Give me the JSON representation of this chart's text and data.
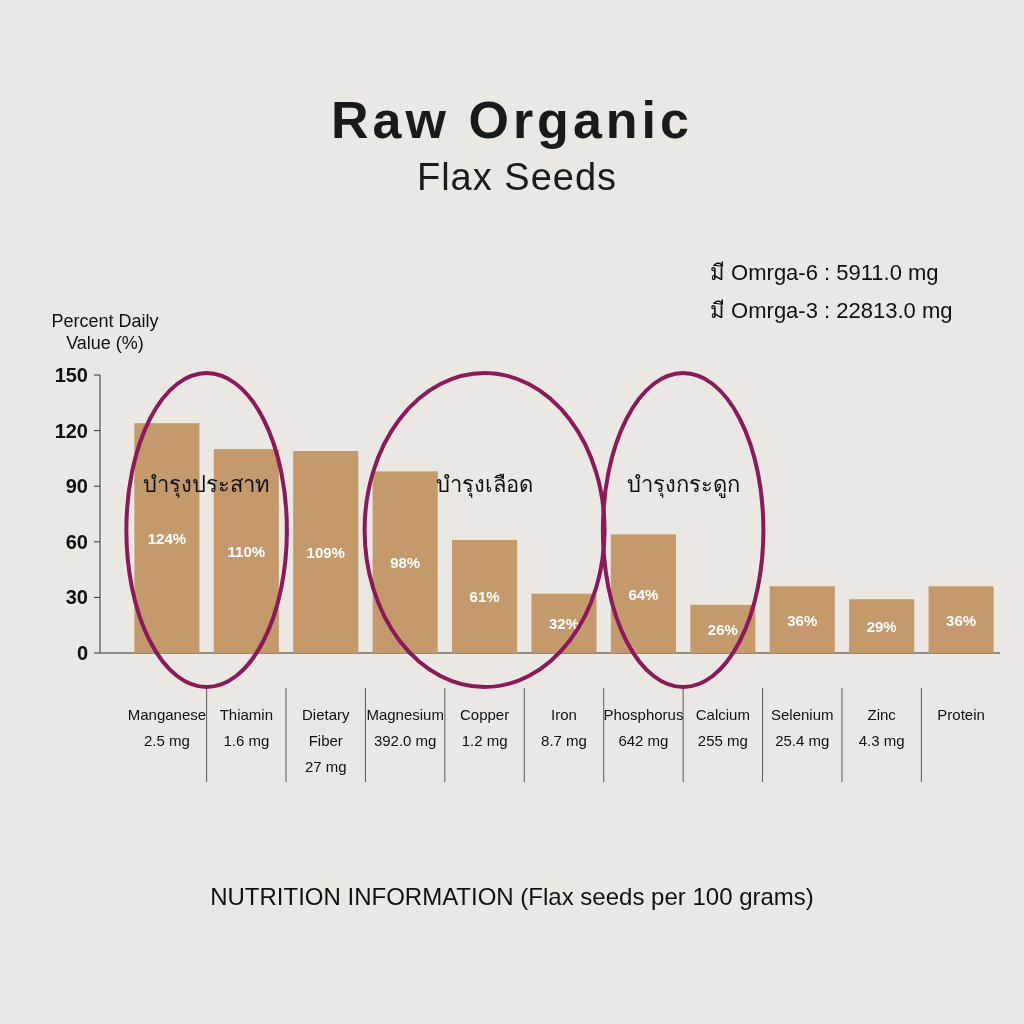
{
  "chart_data": {
    "type": "bar",
    "title": "Raw Organic",
    "subtitle": "Flax Seeds",
    "ylabel": "Percent Daily Value (%)",
    "categories": [
      "Manganese\n2.5 mg",
      "Thiamin\n1.6 mg",
      "Dietary\nFiber\n27 mg",
      "Magnesium\n392.0 mg",
      "Copper\n1.2 mg",
      "Iron\n8.7 mg",
      "Phosphorus\n642 mg",
      "Calcium\n255 mg",
      "Selenium\n25.4 mg",
      "Zinc\n4.3 mg",
      "Protein"
    ],
    "values": [
      124,
      110,
      109,
      98,
      61,
      32,
      64,
      26,
      36,
      29,
      36
    ],
    "value_labels": [
      "124%",
      "110%",
      "109%",
      "98%",
      "61%",
      "32%",
      "64%",
      "26%",
      "36%",
      "29%",
      "36%"
    ],
    "color": "#c49a6c",
    "ylim": [
      0,
      150
    ],
    "yticks": [
      0,
      30,
      60,
      90,
      120,
      150
    ],
    "annotations": [
      "มี Omrga-6 : 5911.0 mg",
      "มี Omrga-3 : 22813.0 mg",
      "บำรุงประสาท",
      "บำรุงเลือด",
      "บำรุงกระดูก",
      "NUTRITION INFORMATION (Flax seeds per 100 grams)"
    ]
  }
}
